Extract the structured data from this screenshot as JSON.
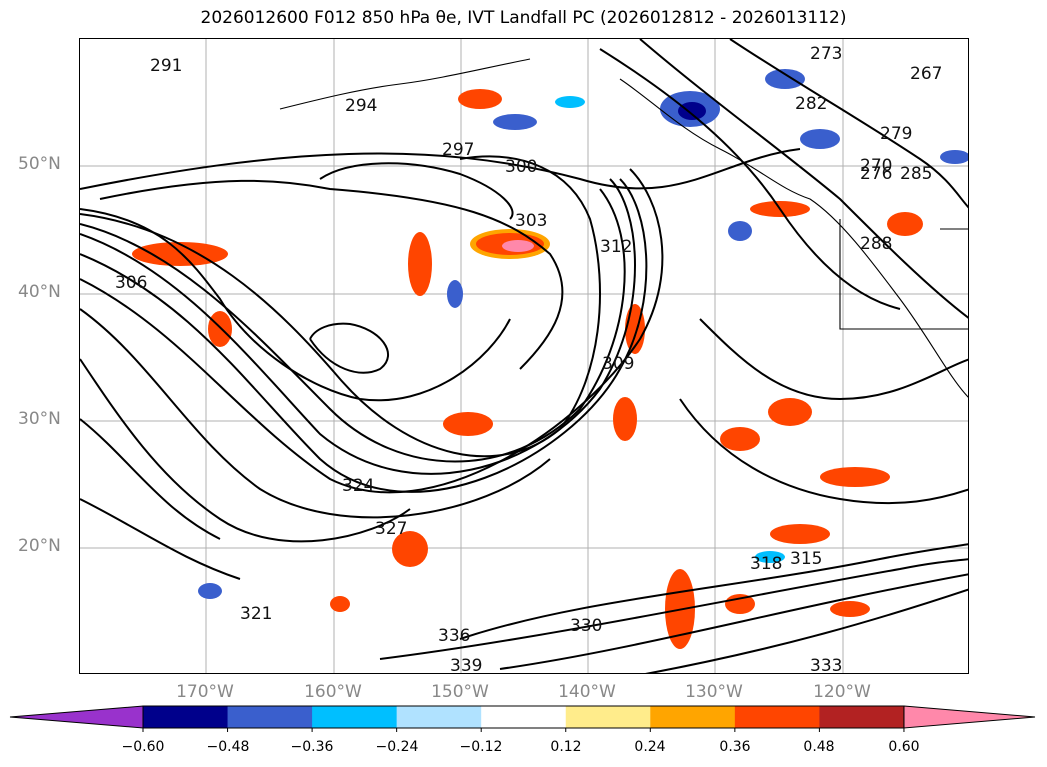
{
  "title": "2026012600 F012 850 hPa θe, IVT Landfall PC (2026012812 - 2026013112)",
  "latitude_labels": [
    "50°N",
    "40°N",
    "30°N",
    "20°N"
  ],
  "longitude_labels": [
    "170°W",
    "160°W",
    "150°W",
    "140°W",
    "130°W",
    "120°W"
  ],
  "colorbar": {
    "ticks": [
      "−0.60",
      "−0.48",
      "−0.36",
      "−0.24",
      "−0.12",
      "0.12",
      "0.24",
      "0.36",
      "0.48",
      "0.60"
    ],
    "colors": [
      "#9932CC",
      "#00008B",
      "#3A5FCD",
      "#00BFFF",
      "#B0E2FF",
      "#FFFFFF",
      "#FFEC8B",
      "#FFA500",
      "#FF4500",
      "#B22222",
      "#FF88AA"
    ]
  },
  "contour_labels": [
    "291",
    "294",
    "297",
    "300",
    "303",
    "306",
    "309",
    "312",
    "315",
    "318",
    "321",
    "324",
    "327",
    "330",
    "333",
    "336",
    "339",
    "270",
    "273",
    "276",
    "279",
    "282",
    "285",
    "288",
    "267"
  ]
}
